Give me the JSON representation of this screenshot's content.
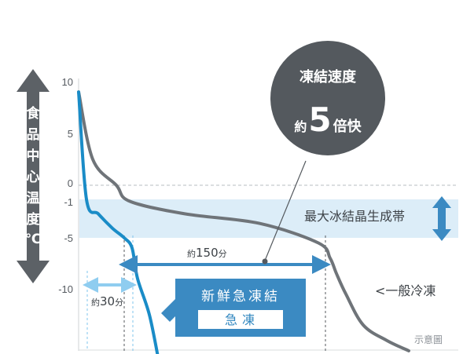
{
  "chart_data": {
    "type": "line",
    "title": "",
    "ylabel_chars": [
      "食",
      "品",
      "中",
      "心",
      "温",
      "度",
      "(℃)"
    ],
    "yticks": [
      "10",
      "5",
      "0",
      "-1",
      "-5",
      "-10"
    ],
    "ylim": [
      -16,
      10
    ],
    "x_unit": "分",
    "series": [
      {
        "name": "急凍",
        "color": "#1a8cc7",
        "x": [
          0,
          5,
          10,
          20,
          28,
          33,
          40,
          55,
          70
        ],
        "y": [
          9,
          -1,
          -2.5,
          -4,
          -5,
          -6,
          -9,
          -12.5,
          -17
        ]
      },
      {
        "name": "一般冷凍",
        "color": "#6f7479",
        "x": [
          0,
          20,
          40,
          60,
          100,
          150,
          200,
          210,
          215,
          225,
          250,
          280,
          300
        ],
        "y": [
          9,
          2.5,
          0,
          -1.2,
          -2.5,
          -3.5,
          -5.5,
          -7,
          -8.5,
          -10.5,
          -13.5,
          -15,
          -16
        ]
      }
    ],
    "band": {
      "label": "最大冰結晶生成帯",
      "from": -1,
      "to": -5,
      "color": "#dcedf8"
    },
    "durations": [
      {
        "text_prefix": "約",
        "value": "30",
        "unit": "分"
      },
      {
        "text_prefix": "約",
        "value": "150",
        "unit": "分"
      }
    ]
  },
  "bubble": {
    "line1": "凍結速度",
    "prefix": "約",
    "number": "5",
    "suffix": "倍快"
  },
  "rapid_box": {
    "title": "新鮮急凍結",
    "sub": "急凍"
  },
  "normal_label": "<一般冷凍",
  "note": "示意圖",
  "colors": {
    "rapid": "#1a8cc7",
    "normal": "#6f7479",
    "band": "#dcedf8",
    "arrow": "#5c6166",
    "bubble": "#54595e",
    "box": "#3b8ac2"
  }
}
